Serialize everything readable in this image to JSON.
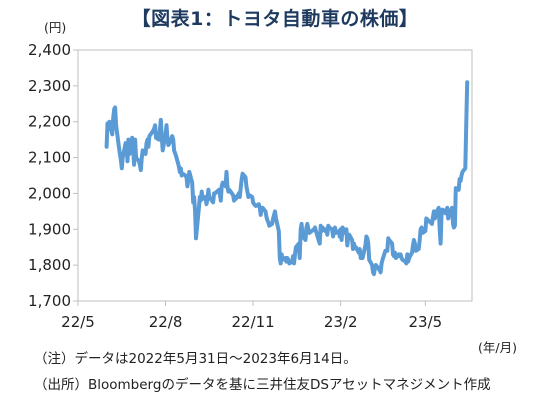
{
  "chart_data": {
    "type": "line",
    "title": "【図表1：トヨタ自動車の株価】",
    "ylabel": "(円)",
    "xlabel": "(年/月)",
    "ylim": [
      1700,
      2400
    ],
    "yticks": [
      "1,700",
      "1,800",
      "1,900",
      "2,000",
      "2,100",
      "2,200",
      "2,300",
      "2,400"
    ],
    "ytick_values": [
      1700,
      1800,
      1900,
      2000,
      2100,
      2200,
      2300,
      2400
    ],
    "xticks": [
      "22/5",
      "22/8",
      "22/11",
      "23/2",
      "23/5"
    ],
    "xtick_values": [
      "2022-05-01",
      "2022-08-01",
      "2022-11-01",
      "2023-02-01",
      "2023-05-01"
    ],
    "xlim": [
      "2022-05-01",
      "2023-06-19"
    ],
    "grid": false,
    "legend": "none",
    "line_color": "#5b9bd5",
    "series": [
      {
        "x": [
          "2022-05-31",
          "2022-06-01",
          "2022-06-02",
          "2022-06-03",
          "2022-06-06",
          "2022-06-07",
          "2022-06-08",
          "2022-06-09",
          "2022-06-10",
          "2022-06-13",
          "2022-06-14",
          "2022-06-15",
          "2022-06-16",
          "2022-06-17",
          "2022-06-20",
          "2022-06-21",
          "2022-06-22",
          "2022-06-23",
          "2022-06-24",
          "2022-06-27",
          "2022-06-28",
          "2022-06-29",
          "2022-06-30",
          "2022-07-01",
          "2022-07-04",
          "2022-07-05",
          "2022-07-06",
          "2022-07-07",
          "2022-07-08",
          "2022-07-11",
          "2022-07-12",
          "2022-07-13",
          "2022-07-14",
          "2022-07-15",
          "2022-07-19",
          "2022-07-20",
          "2022-07-21",
          "2022-07-22",
          "2022-07-25",
          "2022-07-26",
          "2022-07-27",
          "2022-07-28",
          "2022-07-29",
          "2022-08-01",
          "2022-08-02",
          "2022-08-03",
          "2022-08-04",
          "2022-08-05",
          "2022-08-08",
          "2022-08-09",
          "2022-08-10",
          "2022-08-12",
          "2022-08-15",
          "2022-08-16",
          "2022-08-17",
          "2022-08-18",
          "2022-08-19",
          "2022-08-22",
          "2022-08-23",
          "2022-08-24",
          "2022-08-25",
          "2022-08-26",
          "2022-08-29",
          "2022-08-30",
          "2022-08-31",
          "2022-09-01",
          "2022-09-02",
          "2022-09-05",
          "2022-09-06",
          "2022-09-07",
          "2022-09-08",
          "2022-09-09",
          "2022-09-12",
          "2022-09-13",
          "2022-09-14",
          "2022-09-15",
          "2022-09-16",
          "2022-09-20",
          "2022-09-21",
          "2022-09-22",
          "2022-09-26",
          "2022-09-27",
          "2022-09-28",
          "2022-09-29",
          "2022-09-30",
          "2022-10-03",
          "2022-10-04",
          "2022-10-05",
          "2022-10-06",
          "2022-10-07",
          "2022-10-11",
          "2022-10-12",
          "2022-10-13",
          "2022-10-14",
          "2022-10-17",
          "2022-10-18",
          "2022-10-19",
          "2022-10-20",
          "2022-10-21",
          "2022-10-24",
          "2022-10-25",
          "2022-10-26",
          "2022-10-27",
          "2022-10-28",
          "2022-10-31",
          "2022-11-01",
          "2022-11-02",
          "2022-11-04",
          "2022-11-07",
          "2022-11-08",
          "2022-11-09",
          "2022-11-10",
          "2022-11-11",
          "2022-11-14",
          "2022-11-15",
          "2022-11-16",
          "2022-11-17",
          "2022-11-18",
          "2022-11-21",
          "2022-11-22",
          "2022-11-24",
          "2022-11-25",
          "2022-11-28",
          "2022-11-29",
          "2022-11-30",
          "2022-12-01",
          "2022-12-02",
          "2022-12-05",
          "2022-12-06",
          "2022-12-07",
          "2022-12-08",
          "2022-12-09",
          "2022-12-12",
          "2022-12-13",
          "2022-12-14",
          "2022-12-15",
          "2022-12-16",
          "2022-12-19",
          "2022-12-20",
          "2022-12-21",
          "2022-12-22",
          "2022-12-23",
          "2022-12-26",
          "2022-12-27",
          "2022-12-28",
          "2022-12-29",
          "2022-12-30",
          "2023-01-04",
          "2023-01-05",
          "2023-01-06",
          "2023-01-10",
          "2023-01-11",
          "2023-01-12",
          "2023-01-13",
          "2023-01-16",
          "2023-01-17",
          "2023-01-18",
          "2023-01-19",
          "2023-01-20",
          "2023-01-23",
          "2023-01-24",
          "2023-01-25",
          "2023-01-26",
          "2023-01-27",
          "2023-01-30",
          "2023-01-31",
          "2023-02-01",
          "2023-02-02",
          "2023-02-03",
          "2023-02-06",
          "2023-02-07",
          "2023-02-08",
          "2023-02-09",
          "2023-02-10",
          "2023-02-13",
          "2023-02-14",
          "2023-02-15",
          "2023-02-16",
          "2023-02-17",
          "2023-02-20",
          "2023-02-21",
          "2023-02-22",
          "2023-02-24",
          "2023-02-27",
          "2023-02-28",
          "2023-03-01",
          "2023-03-02",
          "2023-03-03",
          "2023-03-06",
          "2023-03-07",
          "2023-03-08",
          "2023-03-09",
          "2023-03-10",
          "2023-03-13",
          "2023-03-14",
          "2023-03-15",
          "2023-03-16",
          "2023-03-17",
          "2023-03-20",
          "2023-03-22",
          "2023-03-23",
          "2023-03-24",
          "2023-03-27",
          "2023-03-28",
          "2023-03-29",
          "2023-03-30",
          "2023-03-31",
          "2023-04-03",
          "2023-04-04",
          "2023-04-05",
          "2023-04-06",
          "2023-04-07",
          "2023-04-10",
          "2023-04-11",
          "2023-04-12",
          "2023-04-13",
          "2023-04-14",
          "2023-04-17",
          "2023-04-18",
          "2023-04-19",
          "2023-04-20",
          "2023-04-21",
          "2023-04-24",
          "2023-04-25",
          "2023-04-26",
          "2023-04-27",
          "2023-04-28",
          "2023-05-01",
          "2023-05-02",
          "2023-05-08",
          "2023-05-09",
          "2023-05-10",
          "2023-05-11",
          "2023-05-12",
          "2023-05-15",
          "2023-05-16",
          "2023-05-17",
          "2023-05-18",
          "2023-05-19",
          "2023-05-22",
          "2023-05-23",
          "2023-05-24",
          "2023-05-25",
          "2023-05-26",
          "2023-05-29",
          "2023-05-30",
          "2023-05-31",
          "2023-06-01",
          "2023-06-02",
          "2023-06-05",
          "2023-06-06",
          "2023-06-07",
          "2023-06-08",
          "2023-06-09",
          "2023-06-12",
          "2023-06-13",
          "2023-06-14"
        ],
        "values": [
          2130,
          2195,
          2180,
          2200,
          2165,
          2210,
          2235,
          2240,
          2190,
          2130,
          2110,
          2095,
          2070,
          2100,
          2140,
          2135,
          2090,
          2150,
          2110,
          2155,
          2120,
          2080,
          2150,
          2100,
          2090,
          2080,
          2065,
          2100,
          2120,
          2110,
          2140,
          2150,
          2130,
          2160,
          2175,
          2180,
          2190,
          2155,
          2150,
          2175,
          2205,
          2160,
          2120,
          2165,
          2190,
          2150,
          2135,
          2140,
          2160,
          2150,
          2120,
          2105,
          2075,
          2060,
          2070,
          2050,
          2055,
          2050,
          2045,
          2020,
          2040,
          2060,
          2030,
          1975,
          1990,
          1950,
          1875,
          1960,
          1990,
          1980,
          2005,
          1985,
          1990,
          1970,
          1985,
          2010,
          1990,
          1975,
          2000,
          2000,
          2010,
          2000,
          1980,
          2020,
          2030,
          2020,
          2060,
          2020,
          2005,
          2010,
          1995,
          1980,
          1990,
          1985,
          2000,
          1990,
          2015,
          2040,
          2055,
          2045,
          2020,
          2005,
          1990,
          1995,
          1990,
          1975,
          1970,
          1965,
          1970,
          1960,
          1940,
          1955,
          1960,
          1950,
          1935,
          1925,
          1920,
          1910,
          1915,
          1930,
          1950,
          1930,
          1895,
          1820,
          1805,
          1830,
          1815,
          1820,
          1810,
          1820,
          1815,
          1805,
          1810,
          1825,
          1805,
          1830,
          1850,
          1860,
          1820,
          1900,
          1915,
          1880,
          1870,
          1905,
          1915,
          1900,
          1890,
          1900,
          1905,
          1895,
          1860,
          1910,
          1895,
          1905,
          1895,
          1900,
          1885,
          1910,
          1905,
          1900,
          1880,
          1895,
          1905,
          1890,
          1895,
          1880,
          1900,
          1870,
          1905,
          1890,
          1900,
          1855,
          1880,
          1885,
          1870,
          1845,
          1860,
          1850,
          1850,
          1835,
          1845,
          1820,
          1820,
          1855,
          1880,
          1875,
          1860,
          1815,
          1800,
          1780,
          1775,
          1790,
          1800,
          1790,
          1785,
          1780,
          1805,
          1815,
          1840,
          1840,
          1875,
          1870,
          1860,
          1830,
          1825,
          1835,
          1820,
          1830,
          1825,
          1830,
          1820,
          1815,
          1810,
          1805,
          1830,
          1810,
          1820,
          1835,
          1855,
          1870,
          1860,
          1840,
          1845,
          1870,
          1900,
          1905,
          1890,
          1895,
          1930,
          1915,
          1935,
          1950,
          1930,
          1945,
          1960,
          1905,
          1860,
          1940,
          1955,
          1945,
          1955,
          1960,
          1930,
          1940,
          1960,
          1915,
          1905,
          1910,
          2015,
          2010,
          2040,
          2035,
          2050,
          2060,
          2070,
          2200,
          2310
        ]
      }
    ]
  },
  "notes": {
    "line1": "（注）データは2022年5月31日～2023年6月14日。",
    "line2": "（出所）Bloombergのデータを基に三井住友DSアセットマネジメント作成"
  }
}
